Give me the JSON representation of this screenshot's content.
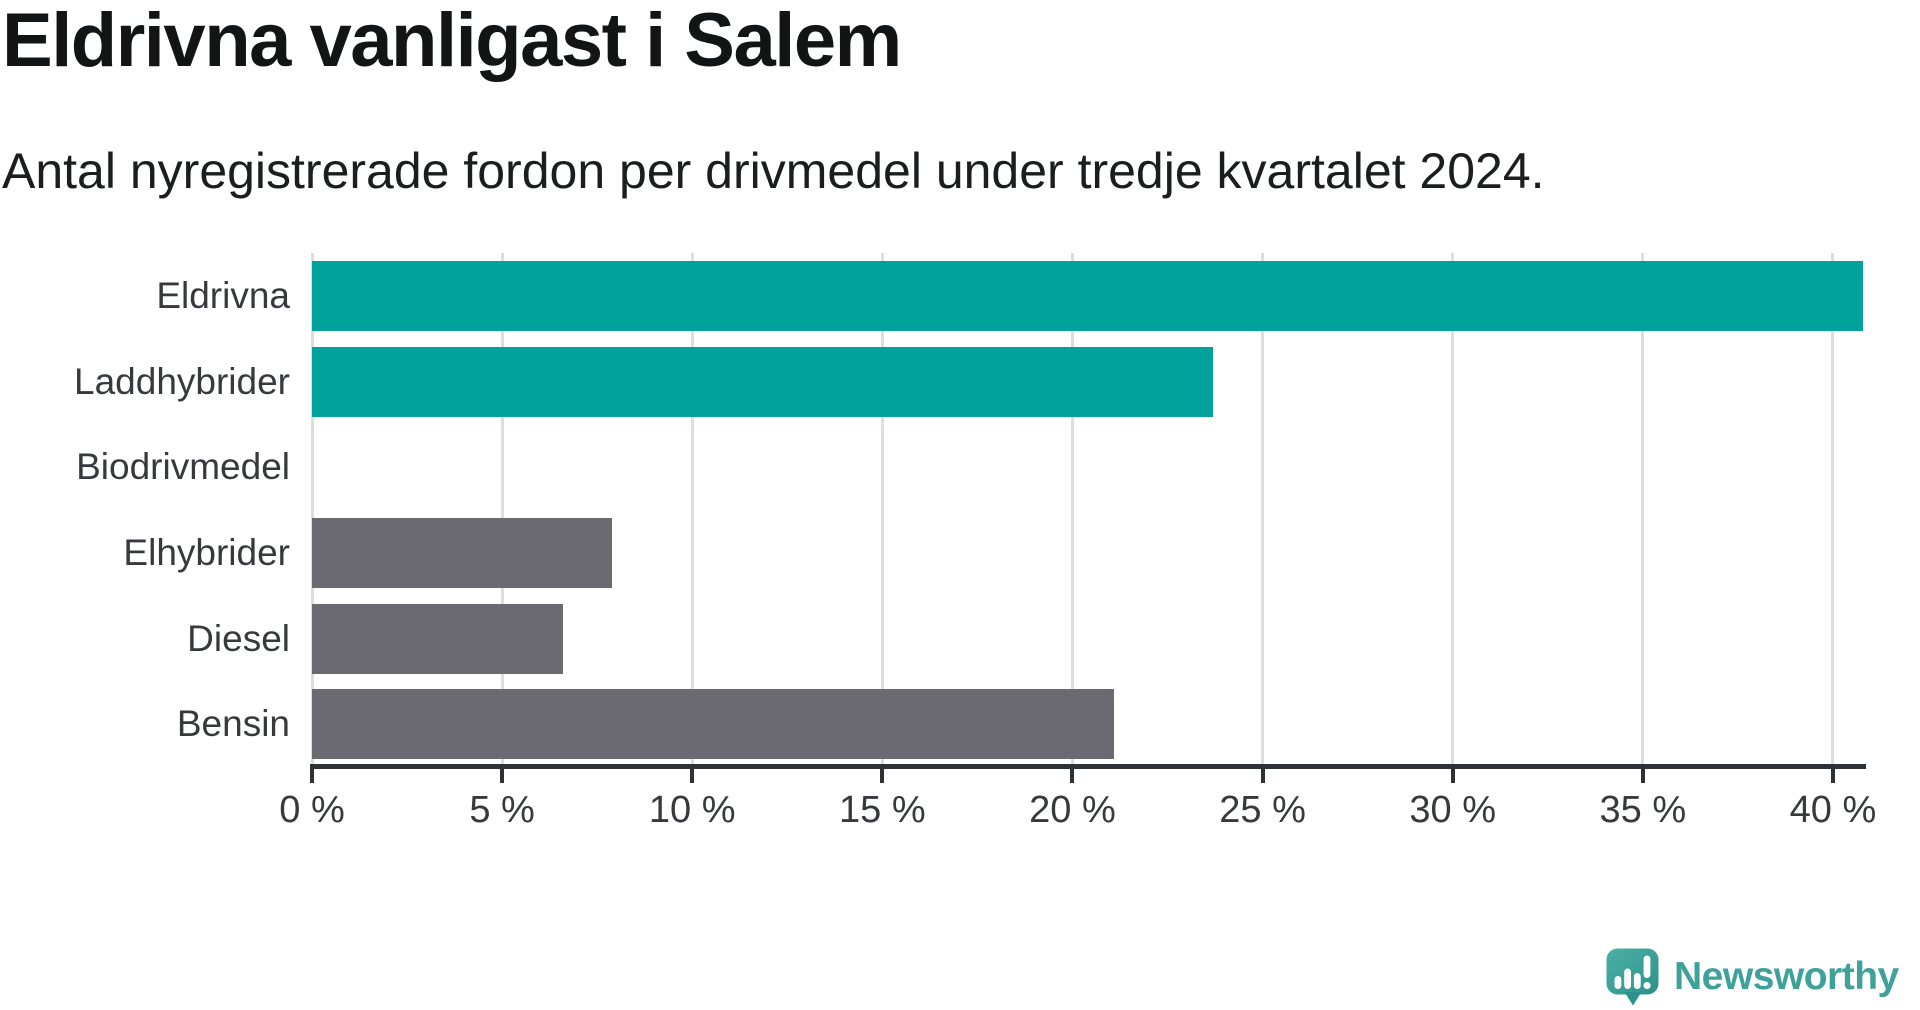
{
  "title": "Eldrivna vanligast i Salem",
  "subtitle": "Antal nyregistrerade fordon per drivmedel under tredje kvartalet 2024.",
  "chart_data": {
    "type": "bar",
    "orientation": "horizontal",
    "title": "Eldrivna vanligast i Salem",
    "subtitle": "Antal nyregistrerade fordon per drivmedel under tredje kvartalet 2024.",
    "categories": [
      "Eldrivna",
      "Laddhybrider",
      "Biodrivmedel",
      "Elhybrider",
      "Diesel",
      "Bensin"
    ],
    "values": [
      40.8,
      23.7,
      0,
      7.9,
      6.6,
      21.1
    ],
    "unit": "%",
    "xlim": [
      0,
      40.79
    ],
    "x_ticks": [
      0,
      5,
      10,
      15,
      20,
      25,
      30,
      35,
      40
    ],
    "x_tick_labels": [
      "0 %",
      "5 %",
      "10 %",
      "15 %",
      "20 %",
      "25 %",
      "30 %",
      "35 %",
      "40 %"
    ],
    "bar_colors": [
      "#00a29b",
      "#00a29b",
      "#6a6a70",
      "#6a6a70",
      "#6a6a70",
      "#6a6a70"
    ],
    "highlight_color": "#00a29b",
    "default_color": "#6a6a70",
    "gridline_color": "#dddddd",
    "grid": true,
    "legend": "none",
    "value_labels": "none"
  },
  "branding": {
    "logo_text": "Newsworthy",
    "logo_color": "#3ea29a"
  }
}
